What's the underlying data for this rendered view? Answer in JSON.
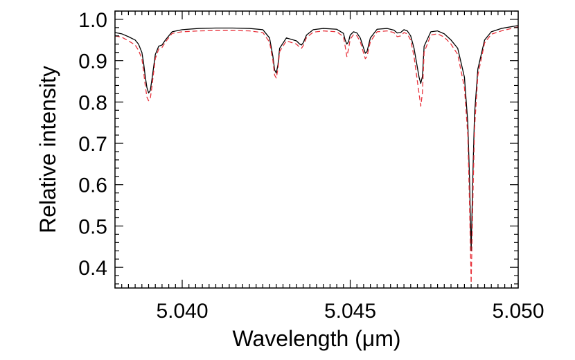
{
  "chart_data": {
    "type": "line",
    "xlabel": "Wavelength (μm)",
    "ylabel": "Relative intensity",
    "xlim": [
      5.038,
      5.05
    ],
    "ylim": [
      0.35,
      1.02
    ],
    "x_tick_labels": [
      {
        "value": 5.04,
        "label": "5.040"
      },
      {
        "value": 5.045,
        "label": "5.045"
      },
      {
        "value": 5.05,
        "label": "5.050"
      }
    ],
    "x_minor_step": 0.0002,
    "y_tick_labels": [
      {
        "value": 0.4,
        "label": "0.4"
      },
      {
        "value": 0.5,
        "label": "0.5"
      },
      {
        "value": 0.6,
        "label": "0.6"
      },
      {
        "value": 0.7,
        "label": "0.7"
      },
      {
        "value": 0.8,
        "label": "0.8"
      },
      {
        "value": 0.9,
        "label": "0.9"
      },
      {
        "value": 1.0,
        "label": "1.0"
      }
    ],
    "y_minor_step": 0.02,
    "grid": false,
    "series": [
      {
        "style": "solid",
        "color": "#000000",
        "x": [
          5.038,
          5.0382,
          5.0384,
          5.0386,
          5.0387,
          5.0388,
          5.03885,
          5.0389,
          5.03895,
          5.039,
          5.03905,
          5.0391,
          5.0392,
          5.0393,
          5.0394,
          5.0395,
          5.0397,
          5.04,
          5.0405,
          5.041,
          5.0415,
          5.042,
          5.0424,
          5.0426,
          5.0427,
          5.04275,
          5.0428,
          5.04285,
          5.0429,
          5.0431,
          5.0434,
          5.0435,
          5.04355,
          5.0436,
          5.0437,
          5.0439,
          5.0442,
          5.0446,
          5.0448,
          5.04485,
          5.0449,
          5.04495,
          5.045,
          5.0451,
          5.0452,
          5.0453,
          5.0454,
          5.04545,
          5.0455,
          5.0456,
          5.0458,
          5.0461,
          5.0463,
          5.0464,
          5.0465,
          5.0466,
          5.0467,
          5.0468,
          5.0469,
          5.04705,
          5.0471,
          5.04715,
          5.0472,
          5.0474,
          5.0476,
          5.0478,
          5.048,
          5.0482,
          5.0484,
          5.0485,
          5.04855,
          5.0486,
          5.04865,
          5.0487,
          5.0488,
          5.049,
          5.0492,
          5.0495,
          5.05
        ],
        "y": [
          0.968,
          0.965,
          0.958,
          0.95,
          0.94,
          0.92,
          0.895,
          0.862,
          0.835,
          0.822,
          0.828,
          0.855,
          0.915,
          0.935,
          0.938,
          0.95,
          0.97,
          0.975,
          0.978,
          0.979,
          0.979,
          0.978,
          0.975,
          0.955,
          0.91,
          0.878,
          0.87,
          0.89,
          0.93,
          0.955,
          0.948,
          0.94,
          0.938,
          0.943,
          0.962,
          0.975,
          0.978,
          0.976,
          0.966,
          0.95,
          0.94,
          0.946,
          0.962,
          0.97,
          0.967,
          0.955,
          0.93,
          0.918,
          0.922,
          0.955,
          0.976,
          0.978,
          0.974,
          0.967,
          0.968,
          0.975,
          0.972,
          0.96,
          0.93,
          0.86,
          0.845,
          0.862,
          0.935,
          0.97,
          0.972,
          0.965,
          0.95,
          0.93,
          0.86,
          0.75,
          0.62,
          0.44,
          0.62,
          0.77,
          0.88,
          0.95,
          0.97,
          0.978,
          0.985
        ]
      },
      {
        "style": "dashed",
        "color": "#e8323b",
        "x": [
          5.038,
          5.0382,
          5.0384,
          5.0386,
          5.0387,
          5.0388,
          5.03885,
          5.0389,
          5.03895,
          5.039,
          5.03905,
          5.0391,
          5.0392,
          5.0393,
          5.0394,
          5.0395,
          5.0397,
          5.04,
          5.0405,
          5.041,
          5.0415,
          5.042,
          5.0424,
          5.0426,
          5.0427,
          5.04275,
          5.0428,
          5.04285,
          5.0429,
          5.0431,
          5.0434,
          5.0435,
          5.04355,
          5.0436,
          5.0437,
          5.0439,
          5.0442,
          5.0446,
          5.0448,
          5.04485,
          5.0449,
          5.04495,
          5.045,
          5.0451,
          5.0452,
          5.0453,
          5.0454,
          5.04545,
          5.0455,
          5.0456,
          5.0458,
          5.0461,
          5.0463,
          5.0464,
          5.0465,
          5.0466,
          5.0467,
          5.0468,
          5.0469,
          5.04705,
          5.0471,
          5.04715,
          5.0472,
          5.0474,
          5.0476,
          5.0478,
          5.048,
          5.0482,
          5.0484,
          5.0485,
          5.04855,
          5.0486,
          5.04865,
          5.0487,
          5.0488,
          5.049,
          5.0492,
          5.0495,
          5.05
        ],
        "y": [
          0.96,
          0.957,
          0.948,
          0.938,
          0.925,
          0.905,
          0.875,
          0.84,
          0.812,
          0.803,
          0.808,
          0.838,
          0.905,
          0.928,
          0.932,
          0.945,
          0.966,
          0.97,
          0.972,
          0.973,
          0.973,
          0.972,
          0.968,
          0.945,
          0.9,
          0.865,
          0.858,
          0.88,
          0.922,
          0.948,
          0.94,
          0.932,
          0.93,
          0.936,
          0.956,
          0.969,
          0.972,
          0.97,
          0.958,
          0.935,
          0.91,
          0.928,
          0.952,
          0.963,
          0.96,
          0.946,
          0.918,
          0.905,
          0.91,
          0.946,
          0.97,
          0.972,
          0.968,
          0.958,
          0.96,
          0.968,
          0.965,
          0.95,
          0.91,
          0.82,
          0.79,
          0.822,
          0.92,
          0.962,
          0.965,
          0.957,
          0.94,
          0.915,
          0.835,
          0.72,
          0.56,
          0.362,
          0.56,
          0.735,
          0.865,
          0.943,
          0.964,
          0.972,
          0.982
        ]
      }
    ]
  }
}
